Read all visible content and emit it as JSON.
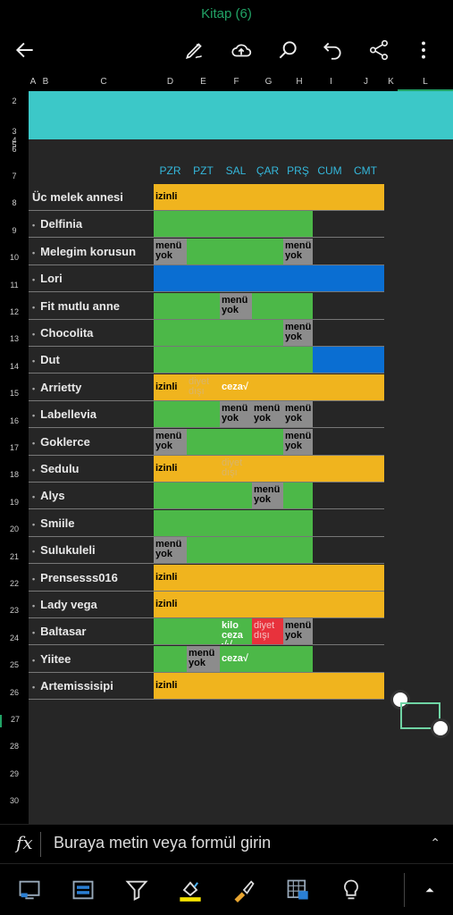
{
  "window": {
    "title": "Kitap (6)"
  },
  "toolbar": {
    "icons": [
      "back-arrow-icon",
      "draw-pen-icon",
      "cloud-upload-icon",
      "search-icon",
      "undo-icon",
      "share-icon",
      "more-vertical-icon"
    ]
  },
  "columns": [
    "A",
    "B",
    "C",
    "D",
    "E",
    "F",
    "G",
    "H",
    "I",
    "J",
    "K",
    "L"
  ],
  "rows": [
    "2",
    "3",
    "4",
    "5",
    "6",
    "7",
    "8",
    "9",
    "10",
    "11",
    "12",
    "13",
    "14",
    "15",
    "16",
    "17",
    "18",
    "19",
    "20",
    "21",
    "22",
    "23",
    "24",
    "25",
    "26",
    "27",
    "28",
    "29",
    "30"
  ],
  "days": [
    "PZR",
    "PZT",
    "SAL",
    "ÇAR",
    "PRŞ",
    "CUM",
    "CMT"
  ],
  "colors": {
    "yellow": "#f0b41e",
    "green": "#4cb848",
    "blue": "#0a6ed2",
    "gray": "#8c8c8c",
    "red": "#e8323c",
    "teal": "#3cc8c8"
  },
  "entries": [
    {
      "name": "Üc melek annesi",
      "bullet": false,
      "bar": "yellow",
      "span": 7,
      "cells": [
        {
          "col": 0,
          "text": "izinli",
          "style": "plain"
        }
      ]
    },
    {
      "name": "Delfinia",
      "bullet": true,
      "bar": "green",
      "span": 5,
      "cells": []
    },
    {
      "name": "Melegim korusun",
      "bullet": true,
      "bar": "green",
      "span": 5,
      "cells": [
        {
          "col": 0,
          "text": "menü yok",
          "style": "gray"
        },
        {
          "col": 4,
          "text": "menü yok",
          "style": "gray"
        }
      ]
    },
    {
      "name": "Lori",
      "bullet": true,
      "bar": "blue",
      "span": 7,
      "cells": []
    },
    {
      "name": "Fit mutlu anne",
      "bullet": true,
      "bar": "green",
      "span": 5,
      "cells": [
        {
          "col": 2,
          "text": "menü yok",
          "style": "gray"
        }
      ]
    },
    {
      "name": "Chocolita",
      "bullet": true,
      "bar": "green",
      "span": 5,
      "cells": [
        {
          "col": 4,
          "text": "menü yok",
          "style": "gray"
        }
      ]
    },
    {
      "name": "Dut",
      "bullet": true,
      "bar": "green",
      "span": 5,
      "extra": {
        "from": 5,
        "span": 2,
        "color": "blue"
      },
      "cells": []
    },
    {
      "name": "Arrietty",
      "bullet": true,
      "bar": "yellow",
      "span": 7,
      "cells": [
        {
          "col": 0,
          "text": "izinli",
          "style": "plain"
        },
        {
          "col": 1,
          "text": "diyet dışı",
          "style": "faint"
        },
        {
          "col": 2,
          "text": "ceza√",
          "style": "white"
        }
      ]
    },
    {
      "name": "Labellevia",
      "bullet": true,
      "bar": "green",
      "span": 5,
      "cells": [
        {
          "col": 2,
          "text": "menü yok",
          "style": "gray"
        },
        {
          "col": 3,
          "text": "menü yok",
          "style": "gray"
        },
        {
          "col": 4,
          "text": "menü yok",
          "style": "gray"
        }
      ]
    },
    {
      "name": "Goklerce",
      "bullet": true,
      "bar": "green",
      "span": 5,
      "cells": [
        {
          "col": 0,
          "text": "menü yok",
          "style": "gray"
        },
        {
          "col": 4,
          "text": "menü yok",
          "style": "gray"
        }
      ]
    },
    {
      "name": "Sedulu",
      "bullet": true,
      "bar": "yellow",
      "span": 7,
      "cells": [
        {
          "col": 0,
          "text": "izinli",
          "style": "plain"
        },
        {
          "col": 2,
          "text": "diyet dışı",
          "style": "faint"
        }
      ]
    },
    {
      "name": "Alys",
      "bullet": true,
      "bar": "green",
      "span": 5,
      "cells": [
        {
          "col": 3,
          "text": "menü yok",
          "style": "gray"
        }
      ]
    },
    {
      "name": "Smiile",
      "bullet": true,
      "bar": "green",
      "span": 5,
      "cells": []
    },
    {
      "name": "Sulukuleli",
      "bullet": true,
      "bar": "green",
      "span": 5,
      "cells": [
        {
          "col": 0,
          "text": "menü yok",
          "style": "gray"
        }
      ]
    },
    {
      "name": "Prensesss016",
      "bullet": true,
      "bar": "yellow",
      "span": 7,
      "cells": [
        {
          "col": 0,
          "text": "izinli",
          "style": "plain"
        }
      ]
    },
    {
      "name": "Lady vega",
      "bullet": true,
      "bar": "yellow",
      "span": 7,
      "cells": [
        {
          "col": 0,
          "text": "izinli",
          "style": "plain"
        }
      ]
    },
    {
      "name": "Baltasar",
      "bullet": true,
      "bar": "green",
      "span": 5,
      "cells": [
        {
          "col": 2,
          "text": "kilo ceza √√",
          "style": "white"
        },
        {
          "col": 3,
          "text": "diyet dışı",
          "style": "red"
        },
        {
          "col": 4,
          "text": "menü yok",
          "style": "gray"
        }
      ]
    },
    {
      "name": "Yiitee",
      "bullet": true,
      "bar": "green",
      "span": 5,
      "cells": [
        {
          "col": 1,
          "text": "menü yok",
          "style": "gray"
        },
        {
          "col": 2,
          "text": "ceza√",
          "style": "white"
        }
      ]
    },
    {
      "name": "Artemissisipi",
      "bullet": true,
      "bar": "yellow",
      "span": 7,
      "cells": [
        {
          "col": 0,
          "text": "izinli",
          "style": "plain"
        }
      ]
    }
  ],
  "formula": {
    "placeholder": "Buraya metin veya formül girin",
    "fx_label": "fx"
  },
  "bottom_toolbar": {
    "icons": [
      "view-icon",
      "layout-icon",
      "filter-icon",
      "fill-color-icon",
      "format-painter-icon",
      "table-style-icon",
      "ideas-lightbulb-icon",
      "expand-up-icon"
    ]
  }
}
